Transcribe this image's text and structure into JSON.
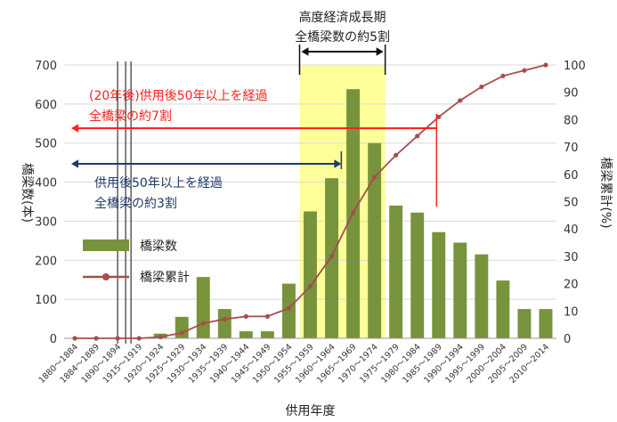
{
  "chart_data": {
    "type": "bar",
    "categories": [
      "1880～1884",
      "1884～1889",
      "1890～1894",
      "1915～1919",
      "1920～1924",
      "1925～1929",
      "1930～1934",
      "1935～1939",
      "1940～1944",
      "1945～1949",
      "1950～1954",
      "1955～1959",
      "1960～1964",
      "1965～1969",
      "1970～1974",
      "1975～1979",
      "1980～1984",
      "1985～1989",
      "1990～1994",
      "1995～1999",
      "2000～2004",
      "2005～2009",
      "2010～2014"
    ],
    "series": [
      {
        "name": "橋梁数",
        "kind": "bar",
        "axis": "left",
        "color": "#77933c",
        "values": [
          0,
          0,
          0,
          1,
          12,
          55,
          157,
          75,
          18,
          18,
          140,
          325,
          410,
          638,
          500,
          340,
          322,
          272,
          245,
          215,
          148,
          75,
          75
        ]
      },
      {
        "name": "橋梁累計",
        "kind": "line",
        "axis": "right",
        "color": "#a64d4d",
        "values": [
          0,
          0,
          0,
          0,
          0.5,
          2,
          5.5,
          7,
          8,
          8,
          11,
          19,
          30,
          46,
          59,
          67,
          74,
          81,
          87,
          92,
          96,
          98,
          100
        ]
      }
    ],
    "xlabel": "供用年度",
    "ylabel": "橋梁数(本)",
    "ylabel_right": "橋梁累計(%)",
    "ylim": [
      0,
      700
    ],
    "yticks": [
      "0",
      "100",
      "200",
      "300",
      "400",
      "500",
      "600",
      "700"
    ],
    "ylim_right": [
      0,
      100
    ],
    "yticks_right": [
      "0",
      "10",
      "20",
      "30",
      "40",
      "50",
      "60",
      "70",
      "80",
      "90",
      "100"
    ],
    "grid": true,
    "legend_placement": "left-center",
    "legend": [
      {
        "label": "橋梁数"
      },
      {
        "label": "橋梁累計"
      }
    ],
    "annotations": {
      "growth_title": "高度経済成長期",
      "growth_share": "全橋梁数の約5割",
      "red_line1": "(20年後)供用後50年以上を経過",
      "red_line2": "全橋梁の約7割",
      "blue_line1": "供用後50年以上を経過",
      "blue_line2": "全橋梁の約3割"
    },
    "colors": {
      "highlight": "#ffff99",
      "red": "#ff2020",
      "blue": "#1f3a68"
    }
  }
}
